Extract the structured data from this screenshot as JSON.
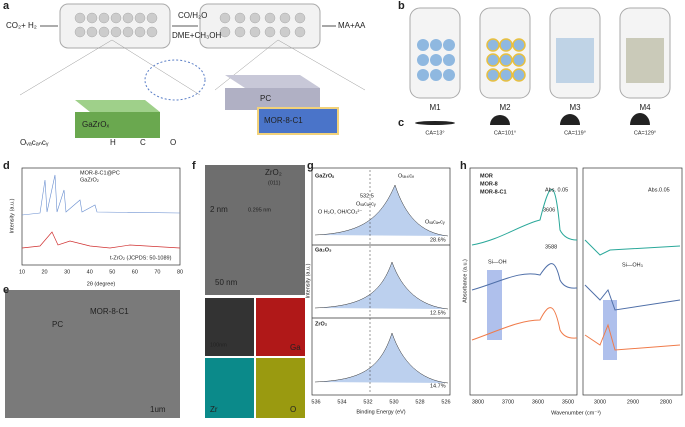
{
  "panel_labels": [
    "a",
    "b",
    "c",
    "d",
    "e",
    "f",
    "g",
    "h"
  ],
  "a": {
    "feed": "CO₂+ H₂",
    "cofeed": "CO/H₂O",
    "mid": "DME+CH₃OH",
    "product": "MA+AA",
    "cat1": "GaZrOₓ",
    "cat2": "PC",
    "cat3": "MOR-8-C1",
    "legend": [
      "Oᵥₐcₐₙcᵧ",
      "H",
      "C",
      "O"
    ]
  },
  "b": {
    "labels": [
      "M1",
      "M2",
      "M3",
      "M4"
    ]
  },
  "c": {
    "labels": [
      "CA=13°",
      "CA=101°",
      "CA=119°",
      "CA=129°"
    ]
  },
  "d": {
    "legend": [
      "MOR-8-C1@PC",
      "GaZrO₂"
    ],
    "ref": "t-ZrO₂ (JCPDS: 50-1089)",
    "xlabel": "2θ (degree)",
    "ylabel": "Intensity (a.u.)",
    "xticks": [
      "10",
      "20",
      "30",
      "40",
      "50",
      "60",
      "70",
      "80"
    ]
  },
  "e": {
    "labels": [
      "PC",
      "MOR-8-C1"
    ],
    "scale": "1um"
  },
  "f": {
    "phase": "ZrO₂",
    "plane": "(011)",
    "scale1": "2 nm",
    "spacing": "0.295 nm",
    "scale2": "50 nm",
    "scale3": "100nm",
    "maps": [
      "Ga",
      "Zr",
      "O"
    ]
  },
  "g": {
    "panels": [
      {
        "name": "GaZrOₓ",
        "pct": "28.6%"
      },
      {
        "name": "Ga₂O₃",
        "pct": "12.5%"
      },
      {
        "name": "ZrO₂",
        "pct": "14.7%"
      }
    ],
    "olattice": "Oₗₐₜₜᵢcₑ",
    "peak": "532.5",
    "ovac": "Oᵥₐcₐₙcᵧ",
    "oh": "O H₂O, OH/CO₃²⁻",
    "ovac2": "Oᵥₐcₐₙcᵧ",
    "xlabel": "Binding Energy (eV)",
    "ylabel": "Intensity (a.u.)",
    "xticks": [
      "536",
      "534",
      "532",
      "530",
      "528",
      "526"
    ]
  },
  "h": {
    "legend": [
      "MOR",
      "MOR-8",
      "MOR-8-C1"
    ],
    "abs": [
      "Abs. 0.05",
      "Abs.0.05"
    ],
    "peak1": "3606",
    "peak2": "3588",
    "sioh": "Si—OH",
    "sioh2": "Si—OH₃",
    "xlabel": "Wavenumber (cm⁻¹)",
    "ylabel": "Absorbance (a.u.)",
    "xticks1": [
      "3800",
      "3700",
      "3600",
      "3500"
    ],
    "xticks2": [
      "3000",
      "2900",
      "2800"
    ]
  }
}
